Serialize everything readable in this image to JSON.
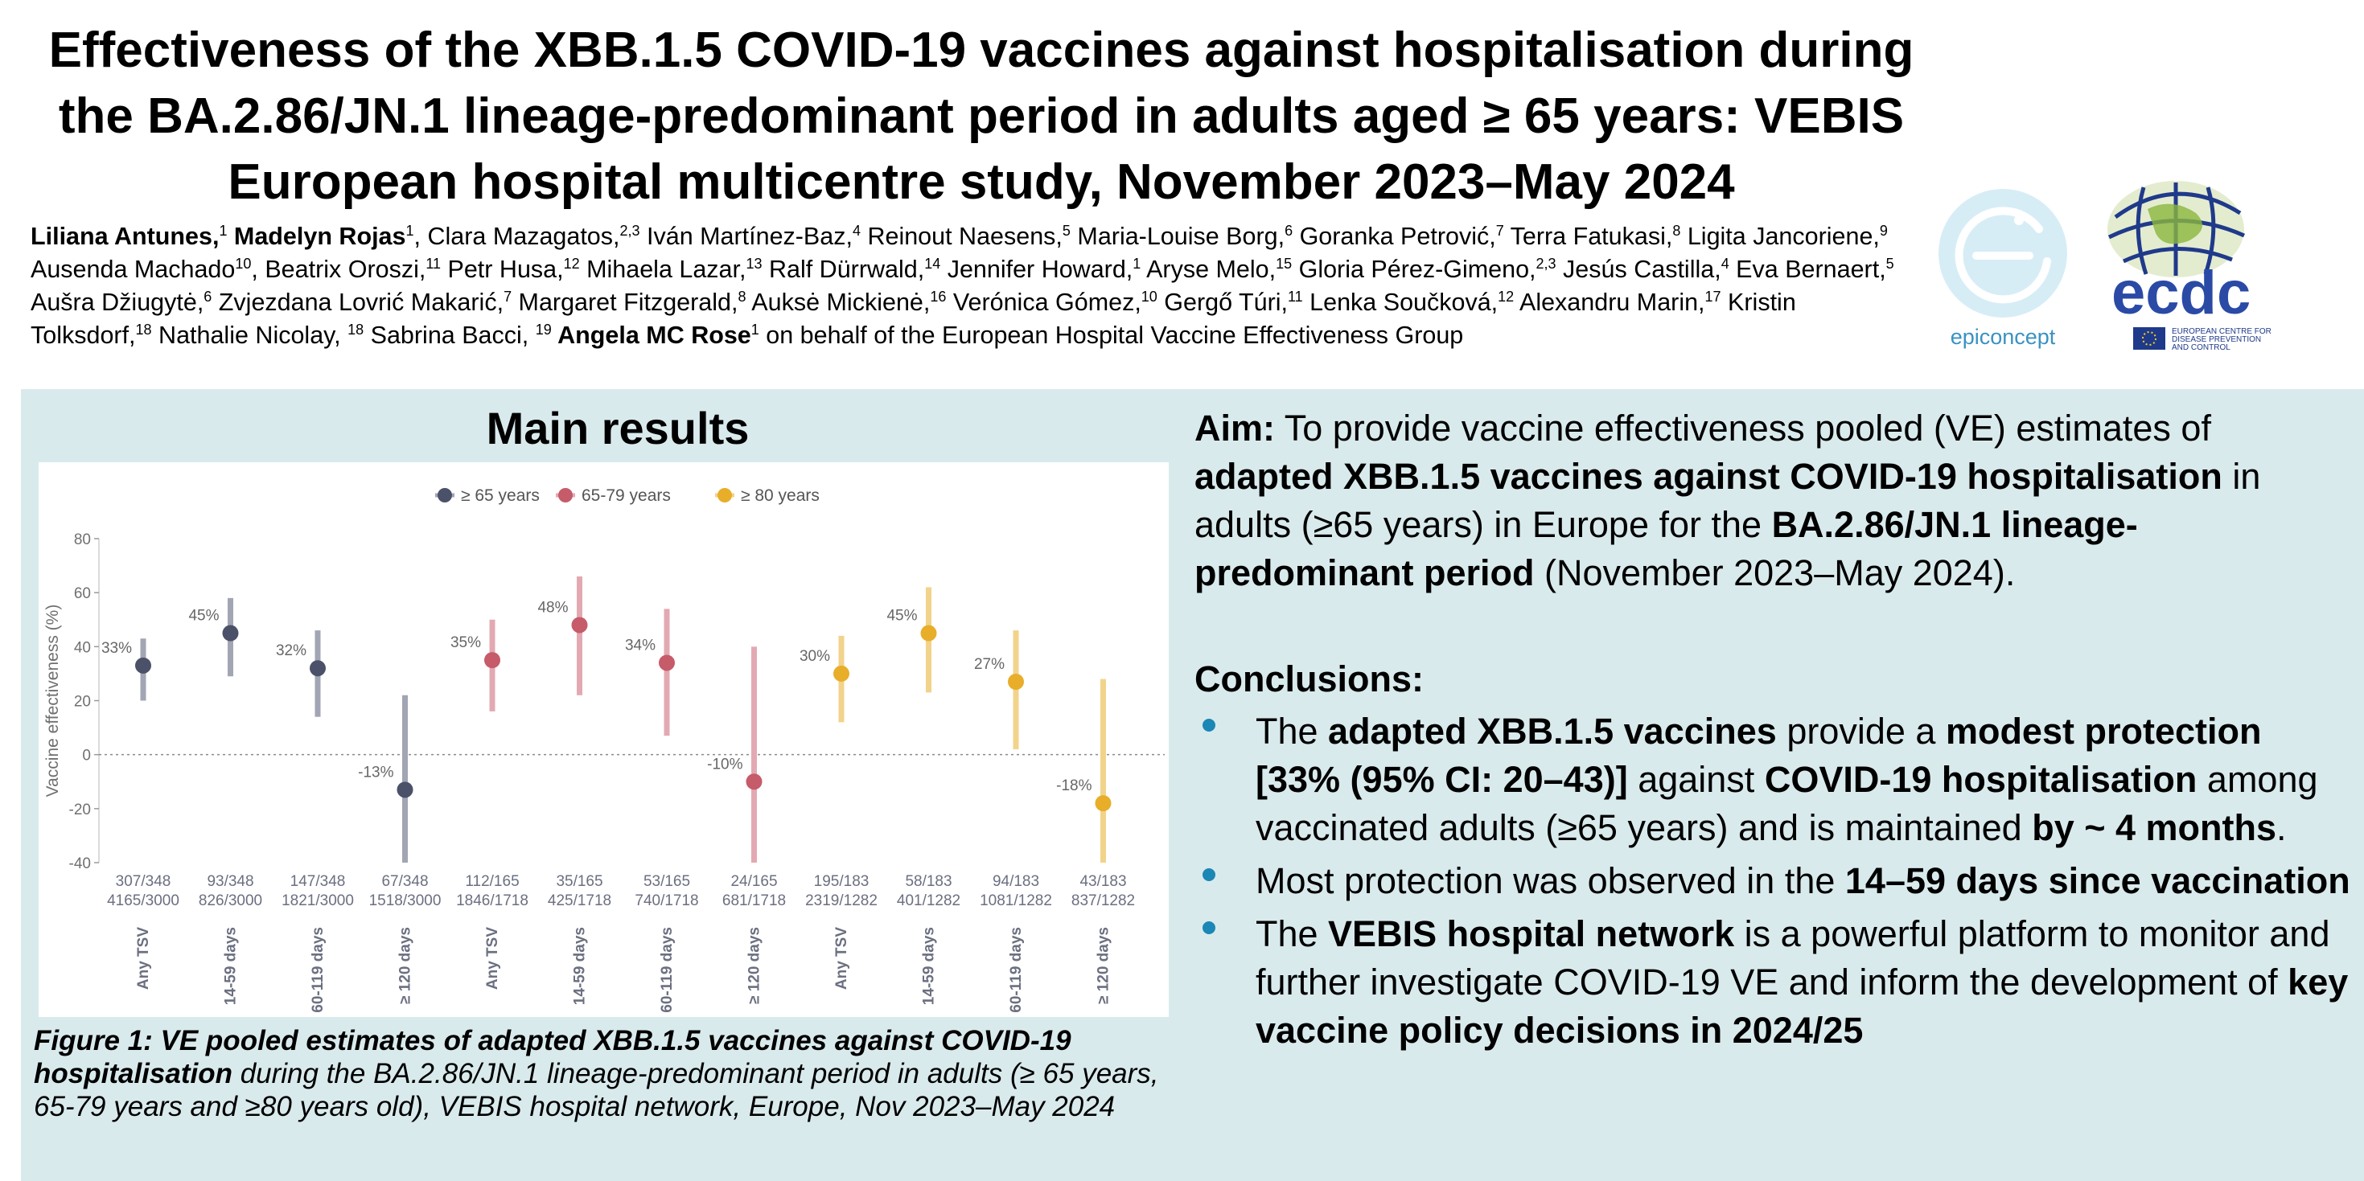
{
  "title": "Effectiveness of the XBB.1.5 COVID-19 vaccines against hospitalisation during the BA.2.86/JN.1 lineage-predominant period in adults aged ≥ 65 years: VEBIS European hospital multicentre study, November 2023–May 2024",
  "authors": [
    {
      "name": "Liliana Antunes,",
      "sup": "1",
      "bold": true
    },
    {
      "name": " Madelyn Rojas",
      "sup": "1",
      "bold": true
    },
    {
      "name": ", Clara Mazagatos,",
      "sup": "2,3",
      "bold": false
    },
    {
      "name": " Iván Martínez-Baz,",
      "sup": "4",
      "bold": false
    },
    {
      "name": " Reinout Naesens,",
      "sup": "5",
      "bold": false
    },
    {
      "name": " Maria-Louise Borg,",
      "sup": "6",
      "bold": false
    },
    {
      "name": " Goranka Petrović,",
      "sup": "7",
      "bold": false
    },
    {
      "name": " Terra Fatukasi,",
      "sup": "8",
      "bold": false
    },
    {
      "name": " Ligita Jancoriene,",
      "sup": "9",
      "bold": false
    },
    {
      "name": " Ausenda Machado",
      "sup": "10",
      "bold": false
    },
    {
      "name": ", Beatrix Oroszi,",
      "sup": "11",
      "bold": false
    },
    {
      "name": " Petr Husa,",
      "sup": "12",
      "bold": false
    },
    {
      "name": " Mihaela Lazar,",
      "sup": "13",
      "bold": false
    },
    {
      "name": " Ralf Dürrwald,",
      "sup": "14",
      "bold": false
    },
    {
      "name": " Jennifer Howard,",
      "sup": "1",
      "bold": false
    },
    {
      "name": " Aryse Melo,",
      "sup": "15",
      "bold": false
    },
    {
      "name": " Gloria Pérez-Gimeno,",
      "sup": "2,3",
      "bold": false
    },
    {
      "name": " Jesús Castilla,",
      "sup": "4",
      "bold": false
    },
    {
      "name": " Eva Bernaert,",
      "sup": "5",
      "bold": false
    },
    {
      "name": " Aušra Džiugytė,",
      "sup": "6",
      "bold": false
    },
    {
      "name": " Zvjezdana Lovrić Makarić,",
      "sup": "7",
      "bold": false
    },
    {
      "name": " Margaret Fitzgerald,",
      "sup": "8",
      "bold": false
    },
    {
      "name": " Auksė Mickienė,",
      "sup": "16",
      "bold": false
    },
    {
      "name": " Verónica Gómez,",
      "sup": "10",
      "bold": false
    },
    {
      "name": " Gergő Túri,",
      "sup": "11",
      "bold": false
    },
    {
      "name": " Lenka Součková,",
      "sup": "12",
      "bold": false
    },
    {
      "name": " Alexandru Marin,",
      "sup": "17",
      "bold": false
    },
    {
      "name": " Kristin Tolksdorf,",
      "sup": "18",
      "bold": false
    },
    {
      "name": " Nathalie Nicolay, ",
      "sup": "18",
      "bold": false
    },
    {
      "name": " Sabrina Bacci, ",
      "sup": "19",
      "bold": false
    },
    {
      "name": " Angela MC Rose",
      "sup": "1",
      "bold": true
    },
    {
      "name": " on behalf of the European Hospital Vaccine Effectiveness Group",
      "sup": "",
      "bold": false
    }
  ],
  "logos": {
    "epiconcept_text": "epiconcept",
    "ecdc_text": "ecdc",
    "ecdc_subtext_1": "EUROPEAN CENTRE FOR",
    "ecdc_subtext_2": "DISEASE PREVENTION",
    "ecdc_subtext_3": "AND CONTROL"
  },
  "main_results_title": "Main results",
  "colors": {
    "age65": "#4b5168",
    "age65_ci": "#a1a5b4",
    "age6579": "#c65b6a",
    "age6579_ci": "#e3a9b2",
    "age80": "#e8ae2a",
    "age80_ci": "#f2d38a",
    "panel": "#d9eaed",
    "bullet": "#1b87b5"
  },
  "chart_data": {
    "type": "scatter",
    "title": "",
    "xlabel": "",
    "ylabel": "Vaccine effectiveness (%)",
    "ylim": [
      -40,
      80
    ],
    "yticks": [
      -40,
      -20,
      0,
      20,
      40,
      60,
      80
    ],
    "reference_line": 0,
    "grid": false,
    "legend_position": "top-center",
    "series": [
      {
        "name": "≥ 65 years",
        "color_key": "age65"
      },
      {
        "name": "65-79 years",
        "color_key": "age6579"
      },
      {
        "name": "≥ 80 years",
        "color_key": "age80"
      }
    ],
    "points": [
      {
        "series": 0,
        "category": "Any TSV",
        "value": 33,
        "lo": 20,
        "hi": 43,
        "label": "33%",
        "cases": "307/348",
        "controls": "4165/3000"
      },
      {
        "series": 0,
        "category": "14-59 days",
        "value": 45,
        "lo": 29,
        "hi": 58,
        "label": "45%",
        "cases": "93/348",
        "controls": "826/3000"
      },
      {
        "series": 0,
        "category": "60-119 days",
        "value": 32,
        "lo": 14,
        "hi": 46,
        "label": "32%",
        "cases": "147/348",
        "controls": "1821/3000"
      },
      {
        "series": 0,
        "category": "≥ 120 days",
        "value": -13,
        "lo": -40,
        "hi": 22,
        "label": "-13%",
        "cases": "67/348",
        "controls": "1518/3000"
      },
      {
        "series": 1,
        "category": "Any TSV",
        "value": 35,
        "lo": 16,
        "hi": 50,
        "label": "35%",
        "cases": "112/165",
        "controls": "1846/1718"
      },
      {
        "series": 1,
        "category": "14-59 days",
        "value": 48,
        "lo": 22,
        "hi": 66,
        "label": "48%",
        "cases": "35/165",
        "controls": "425/1718"
      },
      {
        "series": 1,
        "category": "60-119 days",
        "value": 34,
        "lo": 7,
        "hi": 54,
        "label": "34%",
        "cases": "53/165",
        "controls": "740/1718"
      },
      {
        "series": 1,
        "category": "≥ 120 days",
        "value": -10,
        "lo": -40,
        "hi": 40,
        "label": "-10%",
        "cases": "24/165",
        "controls": "681/1718"
      },
      {
        "series": 2,
        "category": "Any TSV",
        "value": 30,
        "lo": 12,
        "hi": 44,
        "label": "30%",
        "cases": "195/183",
        "controls": "2319/1282"
      },
      {
        "series": 2,
        "category": "14-59 days",
        "value": 45,
        "lo": 23,
        "hi": 62,
        "label": "45%",
        "cases": "58/183",
        "controls": "401/1282"
      },
      {
        "series": 2,
        "category": "60-119 days",
        "value": 27,
        "lo": 2,
        "hi": 46,
        "label": "27%",
        "cases": "94/183",
        "controls": "1081/1282"
      },
      {
        "series": 2,
        "category": "≥ 120 days",
        "value": -18,
        "lo": -40,
        "hi": 28,
        "label": "-18%",
        "cases": "43/183",
        "controls": "837/1282"
      }
    ]
  },
  "caption": {
    "bold_italic": "Figure 1: VE pooled estimates of adapted XBB.1.5 vaccines against COVID-19 hospitalisation",
    "italic": " during the BA.2.86/JN.1 lineage-predominant period in adults (≥ 65 years, 65-79 years and ≥80 years old), VEBIS hospital network, Europe, Nov 2023–May 2024"
  },
  "aim": {
    "label": "Aim:",
    "t1": " To provide vaccine effectiveness pooled (VE) estimates of ",
    "b1": "adapted XBB.1.5 vaccines against COVID-19 hospitalisation",
    "t2": " in adults (≥65 years) in Europe for the ",
    "b2": "BA.2.86/JN.1 lineage-predominant period",
    "t3": " (November 2023–May 2024)."
  },
  "conclusions_title": "Conclusions:",
  "conclusions": [
    {
      "parts": [
        {
          "t": "The ",
          "b": false
        },
        {
          "t": "adapted XBB.1.5 vaccines",
          "b": true
        },
        {
          "t": " provide a ",
          "b": false
        },
        {
          "t": "modest protection [33% (95% CI: 20–43)]",
          "b": true
        },
        {
          "t": " against ",
          "b": false
        },
        {
          "t": "COVID-19 hospitalisation",
          "b": true
        },
        {
          "t": " among vaccinated adults (≥65 years) and is maintained ",
          "b": false
        },
        {
          "t": "by ~ 4 months",
          "b": true
        },
        {
          "t": ".",
          "b": false
        }
      ]
    },
    {
      "parts": [
        {
          "t": "Most protection was observed in the ",
          "b": false
        },
        {
          "t": "14–59 days since vaccination",
          "b": true
        }
      ]
    },
    {
      "parts": [
        {
          "t": "The ",
          "b": false
        },
        {
          "t": "VEBIS hospital network",
          "b": true
        },
        {
          "t": " is a powerful platform to monitor and further investigate COVID-19 VE and inform the development of ",
          "b": false
        },
        {
          "t": "key vaccine policy decisions in 2024/25",
          "b": true
        }
      ]
    }
  ]
}
